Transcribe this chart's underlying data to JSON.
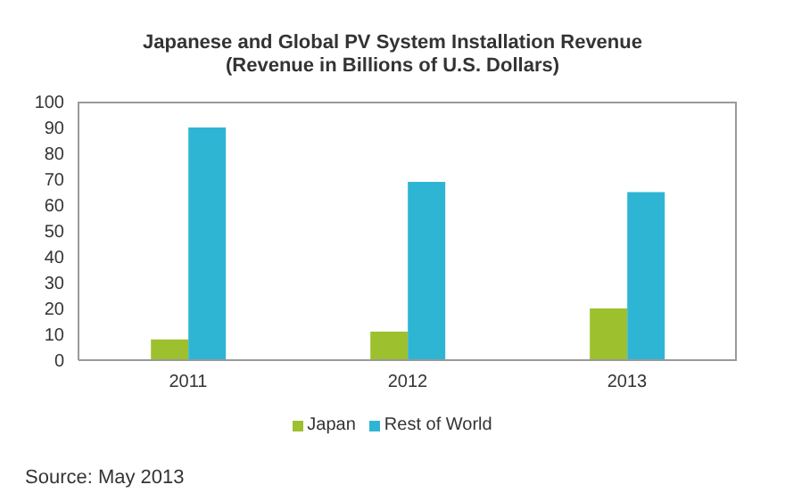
{
  "chart_data": {
    "type": "bar",
    "title": "Japanese and Global PV System Installation Revenue",
    "subtitle": "(Revenue in Billions of U.S. Dollars)",
    "categories": [
      "2011",
      "2012",
      "2013"
    ],
    "series": [
      {
        "name": "Japan",
        "color": "#9dc02e",
        "values": [
          8,
          11,
          20
        ]
      },
      {
        "name": "Rest of World",
        "color": "#2fb5d4",
        "values": [
          90,
          69,
          65
        ]
      }
    ],
    "ylim": [
      0,
      100
    ],
    "yticks": [
      0,
      10,
      20,
      30,
      40,
      50,
      60,
      70,
      80,
      90,
      100
    ],
    "grid": false,
    "legend": "bottom",
    "annotations": [
      "Source: May 2013"
    ]
  }
}
